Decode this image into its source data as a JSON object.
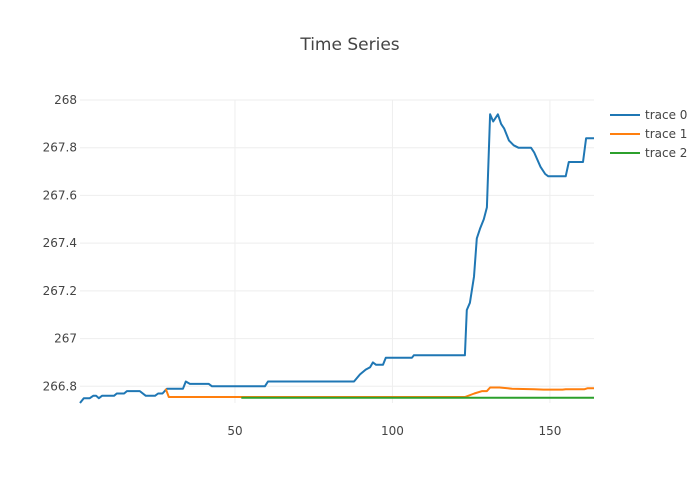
{
  "chart_data": {
    "type": "line",
    "title": "Time Series",
    "xlabel": "",
    "ylabel": "",
    "xlim": [
      0.8,
      164
    ],
    "ylim": [
      266.73,
      268.0
    ],
    "xticks": [
      50,
      100,
      150
    ],
    "yticks": [
      266.8,
      267,
      267.2,
      267.4,
      267.6,
      267.8,
      268
    ],
    "ytick_labels": [
      "266.8",
      "267",
      "267.2",
      "267.4",
      "267.6",
      "267.8",
      "268"
    ],
    "grid": true,
    "legend_position": "right",
    "series": [
      {
        "name": "trace 0",
        "color": "#1f77b4",
        "x": [
          0.8,
          2,
          3.9,
          5,
          5.9,
          6.8,
          7.8,
          11.6,
          12.5,
          14.8,
          15.7,
          19.8,
          21.7,
          24.6,
          25.6,
          27,
          28.4,
          33.5,
          34.4,
          35.7,
          41.7,
          42.7,
          59.5,
          60.5,
          87.8,
          89.7,
          91.5,
          92.9,
          93.8,
          94.8,
          97,
          97.9,
          106.2,
          106.8,
          123,
          123.6,
          124.6,
          125.9,
          126.8,
          127.8,
          129,
          130,
          131,
          132,
          133.5,
          134.5,
          135.5,
          137,
          138.5,
          140,
          144,
          145,
          147,
          148.5,
          149.5,
          155,
          156,
          160.5,
          161.5,
          164
        ],
        "y": [
          266.73,
          266.75,
          266.75,
          266.76,
          266.76,
          266.75,
          266.76,
          266.76,
          266.77,
          266.77,
          266.78,
          266.78,
          266.76,
          266.76,
          266.77,
          266.77,
          266.79,
          266.79,
          266.82,
          266.81,
          266.81,
          266.8,
          266.8,
          266.82,
          266.82,
          266.85,
          266.87,
          266.88,
          266.9,
          266.89,
          266.89,
          266.92,
          266.92,
          266.93,
          266.93,
          267.12,
          267.15,
          267.26,
          267.42,
          267.46,
          267.5,
          267.55,
          267.94,
          267.91,
          267.94,
          267.9,
          267.88,
          267.83,
          267.81,
          267.8,
          267.8,
          267.78,
          267.72,
          267.69,
          267.68,
          267.68,
          267.74,
          267.74,
          267.84,
          267.84
        ]
      },
      {
        "name": "trace 1",
        "color": "#ff7f0e",
        "x": [
          28,
          29,
          123,
          126,
          128.5,
          130,
          131,
          134,
          138,
          145,
          148,
          154,
          155,
          161,
          162,
          164
        ],
        "y": [
          266.79,
          266.755,
          266.755,
          266.77,
          266.78,
          266.78,
          266.795,
          266.795,
          266.79,
          266.788,
          266.786,
          266.786,
          266.788,
          266.788,
          266.792,
          266.792
        ]
      },
      {
        "name": "trace 2",
        "color": "#2ca02c",
        "x": [
          52,
          164
        ],
        "y": [
          266.752,
          266.752
        ]
      }
    ]
  }
}
